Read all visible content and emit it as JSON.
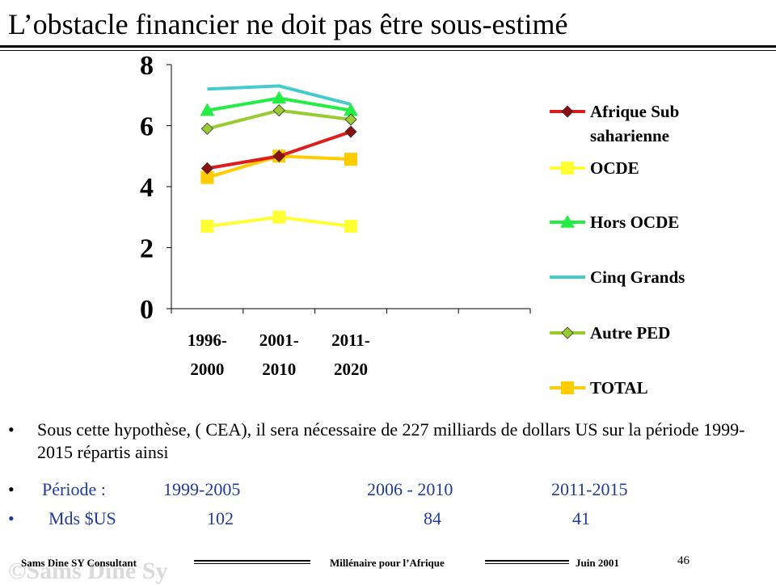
{
  "slide": {
    "title": "L’obstacle financier ne doit pas être sous-estimé"
  },
  "chart_data": {
    "type": "line",
    "categories": [
      [
        "1996-",
        "2000"
      ],
      [
        "2001-",
        "2010"
      ],
      [
        "2011-",
        "2020"
      ]
    ],
    "ylim": [
      0,
      8
    ],
    "yticks": [
      0,
      2,
      4,
      6,
      8
    ],
    "grid": false,
    "legend_position": "right",
    "series": [
      {
        "name_lines": [
          "Afrique Sub",
          "saharienne"
        ],
        "color": "#dd1e1e",
        "marker": "diamond",
        "marker_color": "#8b1010",
        "values": [
          4.6,
          5.0,
          5.8
        ]
      },
      {
        "name_lines": [
          "OCDE"
        ],
        "color": "#ffff33",
        "marker": "square",
        "marker_color": "#ffff33",
        "values": [
          2.7,
          3.0,
          2.7
        ]
      },
      {
        "name_lines": [
          "Hors OCDE"
        ],
        "color": "#22ee44",
        "marker": "triangle",
        "marker_color": "#22ee44",
        "values": [
          6.5,
          6.9,
          6.5
        ]
      },
      {
        "name_lines": [
          "Cinq Grands"
        ],
        "color": "#44cccc",
        "marker": "none",
        "marker_color": "#44cccc",
        "values": [
          7.2,
          7.3,
          6.7
        ]
      },
      {
        "name_lines": [
          "Autre PED"
        ],
        "color": "#99cc33",
        "marker": "diamond",
        "marker_color": "#99cc33",
        "values": [
          5.9,
          6.5,
          6.2
        ]
      },
      {
        "name_lines": [
          "TOTAL"
        ],
        "color": "#ffcc00",
        "marker": "square",
        "marker_color": "#ffcc00",
        "values": [
          4.3,
          5.0,
          4.9
        ]
      }
    ]
  },
  "bullets": {
    "marker": "•",
    "text": "Sous cette hypothèse, ( CEA), il sera nécessaire de 227 milliards de dollars US sur la période 1999-2015 répartis ainsi",
    "period_label": "Période :",
    "periods": [
      "1999-2005",
      "2006 - 2010",
      "2011-2015"
    ],
    "amount_label": "Mds $US",
    "amounts": [
      "102",
      "84",
      "41"
    ]
  },
  "footer": {
    "author": "Sams Dine SY Consultant",
    "center": "Millénaire pour l’Afrique",
    "date": "Juin  2001",
    "page": "46",
    "watermark": "©Sams Dine Sy"
  }
}
